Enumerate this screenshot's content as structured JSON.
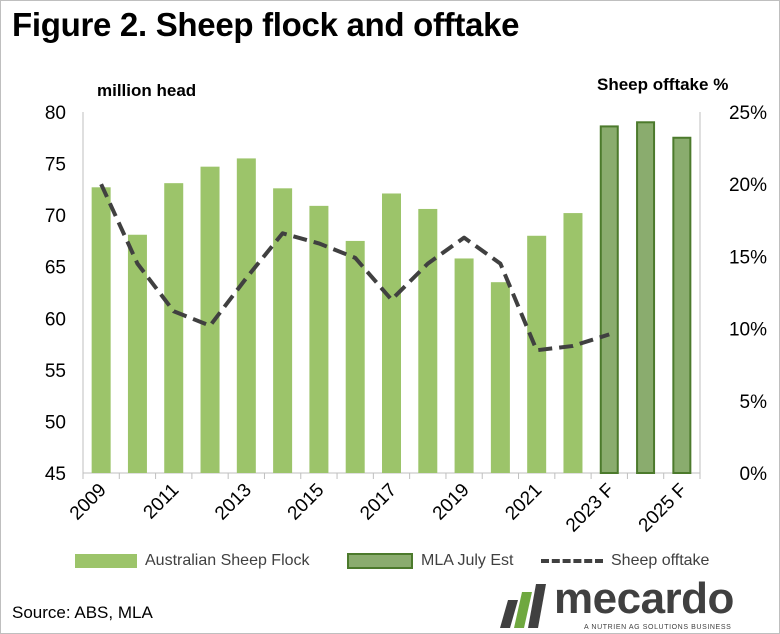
{
  "title": "Figure 2. Sheep flock and offtake",
  "left_axis_unit": "million head",
  "right_axis_unit": "Sheep offtake %",
  "source": "Source: ABS, MLA",
  "logo": {
    "word": "mecardo",
    "tagline": "A NUTRIEN AG SOLUTIONS BUSINESS"
  },
  "colors": {
    "flock": "#9cc46a",
    "estimate_fill": "#8aac6e",
    "estimate_border": "#4c7a2c",
    "offtake": "#404040"
  },
  "chart_data": {
    "type": "bar",
    "categories": [
      "2009",
      "2010",
      "2011",
      "2012",
      "2013",
      "2014",
      "2015",
      "2016",
      "2017",
      "2018",
      "2019",
      "2020",
      "2021",
      "2022",
      "2023 F",
      "2024 F",
      "2025 F"
    ],
    "x_tick_labels": [
      "2009",
      "2011",
      "2013",
      "2015",
      "2017",
      "2019",
      "2021",
      "2023 F",
      "2025 F"
    ],
    "ylim": [
      45,
      80
    ],
    "yticks": [
      45,
      50,
      55,
      60,
      65,
      70,
      75,
      80
    ],
    "y2lim": [
      0,
      25
    ],
    "y2ticks": [
      "0%",
      "5%",
      "10%",
      "15%",
      "20%",
      "25%"
    ],
    "grid": false,
    "legend_position": "bottom",
    "series": [
      {
        "name": "Australian Sheep Flock",
        "kind": "bar",
        "axis": "left",
        "values": [
          72.7,
          68.1,
          73.1,
          74.7,
          75.5,
          72.6,
          70.9,
          67.5,
          72.1,
          70.6,
          65.8,
          63.5,
          68.0,
          70.2,
          null,
          null,
          null
        ]
      },
      {
        "name": "MLA July Est",
        "kind": "bar",
        "axis": "left",
        "values": [
          null,
          null,
          null,
          null,
          null,
          null,
          null,
          null,
          null,
          null,
          null,
          null,
          null,
          null,
          78.7,
          79.1,
          77.6
        ]
      },
      {
        "name": "Sheep offtake",
        "kind": "line",
        "style": "dashed",
        "axis": "right",
        "unit": "%",
        "values": [
          20.0,
          14.5,
          11.2,
          10.2,
          13.5,
          16.6,
          15.9,
          14.9,
          12.0,
          14.5,
          16.3,
          14.5,
          8.5,
          8.8,
          9.6,
          null,
          null
        ]
      }
    ]
  }
}
